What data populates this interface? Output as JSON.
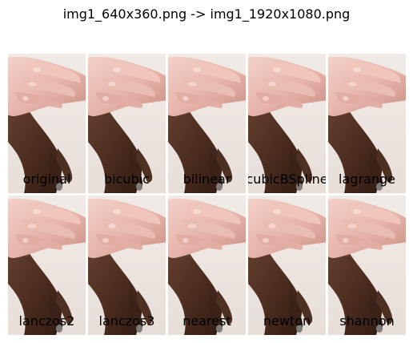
{
  "title": "img1_640x360.png -> img1_1920x1080.png",
  "panels": [
    {
      "label": "original",
      "icon": "hand-photo",
      "tint": "#ebe3dd"
    },
    {
      "label": "bicubic",
      "icon": "hand-photo",
      "tint": "#ebe3dd"
    },
    {
      "label": "bilinear",
      "icon": "hand-photo",
      "tint": "#ebe3dd"
    },
    {
      "label": "cubicBSpline",
      "icon": "hand-photo",
      "tint": "#ebe3dd"
    },
    {
      "label": "lagrange",
      "icon": "hand-photo",
      "tint": "#ebe3dd"
    },
    {
      "label": "lanczos2",
      "icon": "hand-photo",
      "tint": "#ebe3dd"
    },
    {
      "label": "lanczos3",
      "icon": "hand-photo",
      "tint": "#ebe3dd"
    },
    {
      "label": "nearest",
      "icon": "hand-photo",
      "tint": "#ebe3dd"
    },
    {
      "label": "newton",
      "icon": "hand-photo",
      "tint": "#ebe3dd"
    },
    {
      "label": "shannon",
      "icon": "hand-photo",
      "tint": "#f4ece8"
    }
  ]
}
